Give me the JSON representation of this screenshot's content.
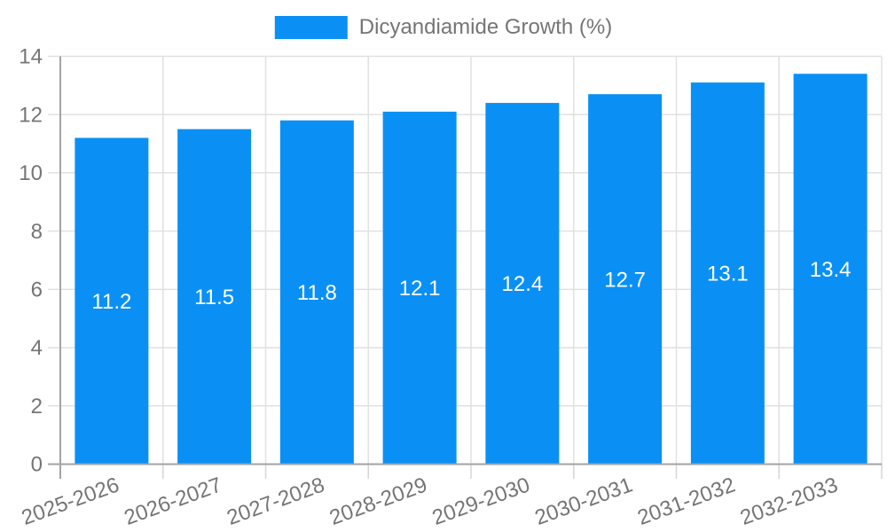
{
  "legend": {
    "label": "Dicyandiamide Growth (%)"
  },
  "chart_data": {
    "type": "bar",
    "title": "",
    "xlabel": "",
    "ylabel": "",
    "categories": [
      "2025-2026",
      "2026-2027",
      "2027-2028",
      "2028-2029",
      "2029-2030",
      "2030-2031",
      "2031-2032",
      "2032-2033"
    ],
    "series": [
      {
        "name": "Dicyandiamide Growth (%)",
        "values": [
          11.2,
          11.5,
          11.8,
          12.1,
          12.4,
          12.7,
          13.1,
          13.4
        ]
      }
    ],
    "value_labels": [
      "11.2",
      "11.5",
      "11.8",
      "12.1",
      "12.4",
      "12.7",
      "13.1",
      "13.4"
    ],
    "ylim": [
      0,
      14
    ],
    "ytick_step": 2,
    "yticks": [
      "0",
      "2",
      "4",
      "6",
      "8",
      "10",
      "12",
      "14"
    ],
    "grid": true,
    "legend_position": "top-center",
    "xtick_rotation_deg": -20,
    "value_label_position": "inside-center",
    "colors": {
      "background": "#ffffff",
      "bar": "#0a90f5",
      "axis": "#a3a3a3",
      "grid": "#e1e1e1",
      "tick": "#d6d6d6",
      "tick_label": "#757575",
      "value_label": "#ffffff"
    }
  }
}
